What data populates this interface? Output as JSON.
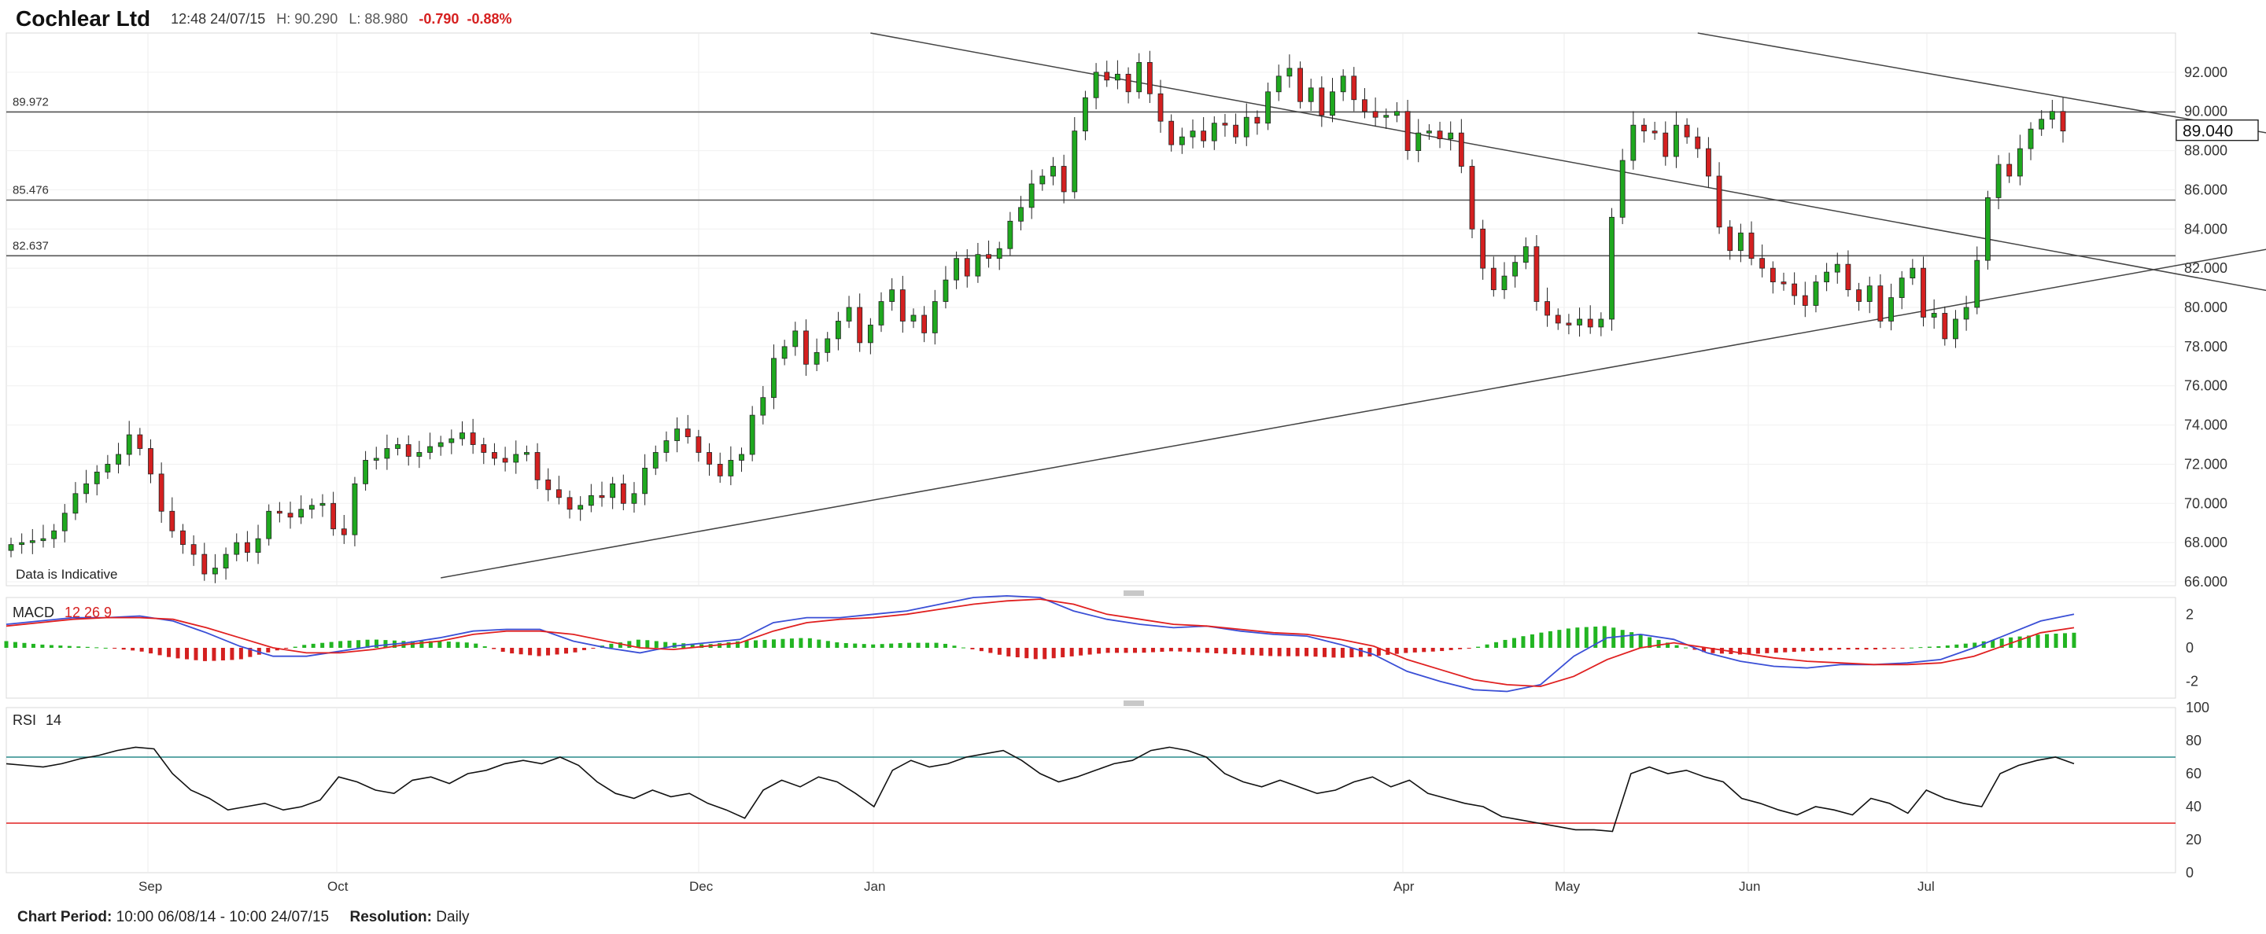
{
  "header": {
    "title": "Cochlear Ltd",
    "datetime": "12:48 24/07/15",
    "high": "H: 90.290",
    "low": "L: 88.980",
    "change": "-0.790",
    "change_pct": "-0.88%"
  },
  "footer": {
    "period_label": "Chart Period:",
    "period_value": "10:00 06/08/14 - 10:00 24/07/15",
    "resolution_label": "Resolution:",
    "resolution_value": "Daily"
  },
  "chart_data": [
    {
      "type": "candlestick",
      "title": "",
      "note": "Data is Indicative",
      "x_tick_labels": [
        "Sep",
        "Oct",
        "Dec",
        "Jan",
        "Apr",
        "May",
        "Jun",
        "Jul"
      ],
      "y_tick_labels": [
        "66.000",
        "68.000",
        "70.000",
        "72.000",
        "74.000",
        "76.000",
        "78.000",
        "80.000",
        "82.000",
        "84.000",
        "86.000",
        "88.000",
        "90.000",
        "92.000"
      ],
      "ylim": [
        65.8,
        94.0
      ],
      "current_price": "89.040",
      "horizontal_levels": [
        {
          "label": "89.972",
          "value": 89.972
        },
        {
          "label": "85.476",
          "value": 85.476
        },
        {
          "label": "82.637",
          "value": 82.637
        }
      ],
      "trendlines": [
        {
          "start": [
            40,
            66.2
          ],
          "end": [
            262,
            88.1
          ]
        },
        {
          "start": [
            80,
            94.0
          ],
          "end": [
            262,
            75.6
          ]
        },
        {
          "start": [
            157,
            94.0
          ],
          "end": [
            262,
            83.9
          ]
        }
      ],
      "closes": [
        67.9,
        68.0,
        68.1,
        68.2,
        68.6,
        69.5,
        70.5,
        71.0,
        71.6,
        72.0,
        72.5,
        73.5,
        72.8,
        71.5,
        69.6,
        68.6,
        67.9,
        67.4,
        66.4,
        66.7,
        67.4,
        68.0,
        67.5,
        68.2,
        69.6,
        69.5,
        69.3,
        69.7,
        69.9,
        70.0,
        68.7,
        68.4,
        71.0,
        72.2,
        72.3,
        72.8,
        73.0,
        72.4,
        72.6,
        72.9,
        73.1,
        73.3,
        73.6,
        73.0,
        72.6,
        72.3,
        72.1,
        72.5,
        72.6,
        71.2,
        70.7,
        70.3,
        69.7,
        69.9,
        70.4,
        70.3,
        71.0,
        70.0,
        70.5,
        71.8,
        72.6,
        73.2,
        73.8,
        73.4,
        72.6,
        72.0,
        71.4,
        72.2,
        72.5,
        74.5,
        75.4,
        77.4,
        78.0,
        78.8,
        77.1,
        77.7,
        78.4,
        79.3,
        80.0,
        78.2,
        79.1,
        80.3,
        80.9,
        79.3,
        79.6,
        78.7,
        80.3,
        81.4,
        82.5,
        81.6,
        82.7,
        82.5,
        83.0,
        84.4,
        85.1,
        86.3,
        86.7,
        87.2,
        85.9,
        89.0,
        90.7,
        92.0,
        91.6,
        91.9,
        91.0,
        92.5,
        90.9,
        89.5,
        88.3,
        88.7,
        89.0,
        88.5,
        89.4,
        89.3,
        88.7,
        89.7,
        89.4,
        91.0,
        91.8,
        92.2,
        90.5,
        91.2,
        89.8,
        91.0,
        91.8,
        90.6,
        90.0,
        89.7,
        89.8,
        90.0,
        88.0,
        88.9,
        89.0,
        88.6,
        88.9,
        87.2,
        84.0,
        82.0,
        80.9,
        81.6,
        82.3,
        83.1,
        80.3,
        79.6,
        79.2,
        79.1,
        79.4,
        79.0,
        79.4,
        84.6,
        87.5,
        89.3,
        89.0,
        88.9,
        87.7,
        89.3,
        88.7,
        88.1,
        86.7,
        84.1,
        82.9,
        83.8,
        82.5,
        82.0,
        81.3,
        81.2,
        80.6,
        80.1,
        81.3,
        81.8,
        82.2,
        80.9,
        80.3,
        81.1,
        79.3,
        80.5,
        81.5,
        82.0,
        79.5,
        79.7,
        78.4,
        79.4,
        80.0,
        82.4,
        85.6,
        87.3,
        86.7,
        88.1,
        89.1,
        89.6,
        90.0,
        89.0
      ]
    },
    {
      "type": "line",
      "title": "MACD",
      "params": [
        "12",
        "26",
        "9"
      ],
      "y_tick_labels": [
        "2",
        "0",
        "-2"
      ],
      "ylim": [
        -3.0,
        3.0
      ],
      "series": [
        {
          "color": "#3a4fd6",
          "values": [
            1.4,
            1.6,
            1.8,
            1.8,
            1.9,
            1.6,
            0.9,
            0.1,
            -0.5,
            -0.5,
            -0.2,
            0.1,
            0.3,
            0.6,
            1.0,
            1.1,
            1.1,
            0.4,
            0.0,
            -0.3,
            0.1,
            0.3,
            0.5,
            1.5,
            1.8,
            1.8,
            2.0,
            2.2,
            2.6,
            3.0,
            3.1,
            3.0,
            2.2,
            1.7,
            1.4,
            1.2,
            1.3,
            1.0,
            0.8,
            0.7,
            0.2,
            -0.4,
            -1.4,
            -2.0,
            -2.5,
            -2.6,
            -2.2,
            -0.5,
            0.6,
            0.8,
            0.5,
            -0.3,
            -0.8,
            -1.1,
            -1.2,
            -1.0,
            -1.0,
            -0.9,
            -0.7,
            0.0,
            0.8,
            1.6,
            2.0
          ]
        },
        {
          "color": "#e02020",
          "values": [
            1.3,
            1.5,
            1.7,
            1.8,
            1.8,
            1.7,
            1.2,
            0.6,
            0.0,
            -0.3,
            -0.3,
            -0.1,
            0.2,
            0.4,
            0.8,
            1.0,
            1.0,
            0.8,
            0.4,
            0.0,
            -0.1,
            0.1,
            0.3,
            1.0,
            1.5,
            1.7,
            1.8,
            2.0,
            2.3,
            2.6,
            2.8,
            2.9,
            2.6,
            2.0,
            1.7,
            1.4,
            1.3,
            1.1,
            0.9,
            0.8,
            0.5,
            0.1,
            -0.7,
            -1.3,
            -1.9,
            -2.2,
            -2.3,
            -1.7,
            -0.7,
            0.0,
            0.3,
            0.0,
            -0.3,
            -0.6,
            -0.8,
            -0.9,
            -1.0,
            -1.0,
            -0.9,
            -0.5,
            0.2,
            0.9,
            1.2
          ]
        },
        {
          "color": "#20b020",
          "name": "histogram",
          "values": [
            0.4,
            0.2,
            0.1,
            0.0,
            -0.2,
            -0.6,
            -0.8,
            -0.7,
            -0.2,
            0.2,
            0.4,
            0.5,
            0.4,
            0.4,
            0.3,
            -0.3,
            -0.5,
            -0.3,
            0.2,
            0.5,
            0.3,
            0.2,
            0.4,
            0.5,
            0.6,
            0.3,
            0.2,
            0.3,
            0.3,
            -0.1,
            -0.5,
            -0.7,
            -0.5,
            -0.3,
            -0.3,
            -0.2,
            -0.3,
            -0.4,
            -0.5,
            -0.5,
            -0.6,
            -0.5,
            -0.3,
            -0.2,
            0.0,
            0.5,
            0.9,
            1.2,
            1.3,
            0.8,
            0.2,
            -0.3,
            -0.4,
            -0.3,
            -0.2,
            -0.1,
            -0.1,
            0.0,
            0.1,
            0.3,
            0.6,
            0.8,
            0.9
          ]
        }
      ]
    },
    {
      "type": "line",
      "title": "RSI",
      "params": [
        "14"
      ],
      "y_tick_labels": [
        "100",
        "80",
        "60",
        "40",
        "20",
        "0"
      ],
      "ylim": [
        0,
        100
      ],
      "reference_levels": [
        70,
        30
      ],
      "series": [
        {
          "color": "#111111",
          "values": [
            66,
            65,
            64,
            66,
            69,
            71,
            74,
            76,
            75,
            60,
            50,
            45,
            38,
            40,
            42,
            38,
            40,
            44,
            58,
            55,
            50,
            48,
            56,
            58,
            54,
            60,
            62,
            66,
            68,
            66,
            70,
            65,
            55,
            48,
            45,
            50,
            46,
            48,
            42,
            38,
            33,
            50,
            56,
            52,
            58,
            55,
            48,
            40,
            62,
            68,
            64,
            66,
            70,
            72,
            74,
            68,
            60,
            55,
            58,
            62,
            66,
            68,
            74,
            76,
            74,
            70,
            60,
            55,
            52,
            56,
            52,
            48,
            50,
            55,
            58,
            52,
            56,
            48,
            45,
            42,
            40,
            34,
            32,
            30,
            28,
            26,
            26,
            25,
            60,
            64,
            60,
            62,
            58,
            55,
            45,
            42,
            38,
            35,
            40,
            38,
            35,
            45,
            42,
            36,
            50,
            45,
            42,
            40,
            60,
            65,
            68,
            70,
            66
          ]
        }
      ]
    }
  ]
}
